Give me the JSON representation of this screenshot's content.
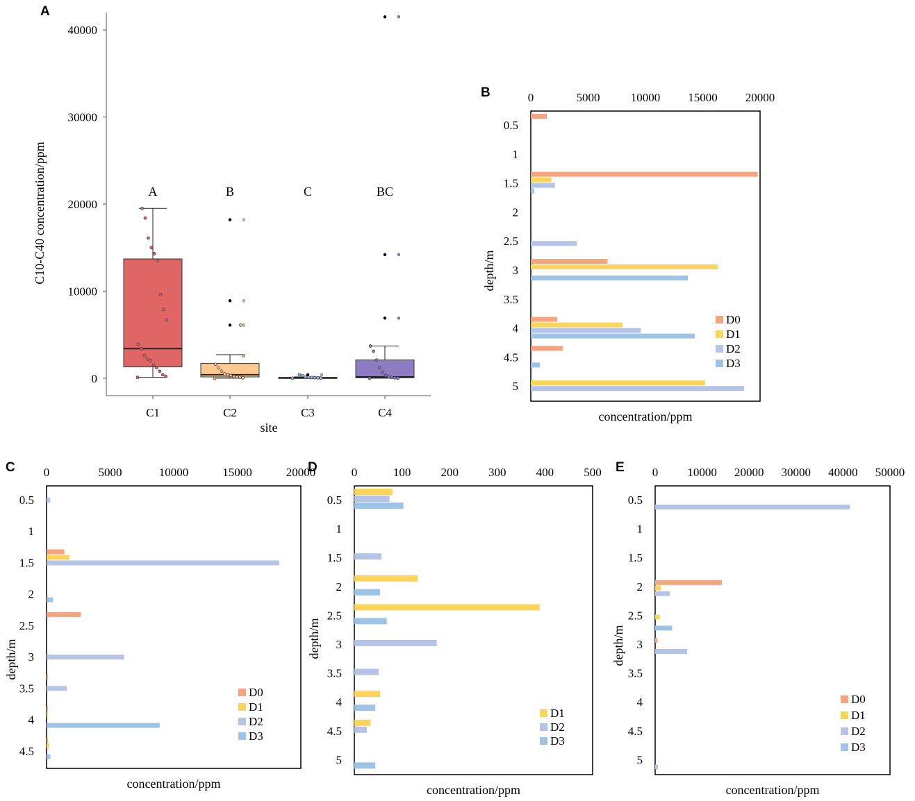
{
  "colors": {
    "D0": "#f4a47e",
    "D1": "#fbd55a",
    "D2": "#b4c3e6",
    "D3": "#9dc3e6"
  },
  "chart_data": [
    {
      "panel": "A",
      "type": "box",
      "xlabel": "site",
      "ylabel": "C10-C40 concentration/ppm",
      "ylim": [
        -2000,
        42000
      ],
      "yticks": [
        0,
        10000,
        20000,
        30000,
        40000
      ],
      "groups": [
        {
          "label": "C1",
          "sig": "A",
          "color": "#e06666",
          "q1": 1300,
          "median": 3400,
          "q3": 13700,
          "whisker_low": 100,
          "whisker_high": 19500,
          "points": [
            100,
            200,
            400,
            800,
            1200,
            1500,
            2000,
            2200,
            2600,
            3400,
            3900,
            6700,
            7900,
            9600,
            13500,
            14300,
            15000,
            16100,
            18400,
            19500
          ],
          "outliers": []
        },
        {
          "label": "C2",
          "sig": "B",
          "color": "#fcc990",
          "q1": 150,
          "median": 400,
          "q3": 1700,
          "whisker_low": 0,
          "whisker_high": 2700,
          "points": [
            0,
            50,
            100,
            150,
            200,
            300,
            400,
            500,
            800,
            1200,
            1600,
            2600,
            6100
          ],
          "outliers": [
            6100,
            8900,
            18200
          ]
        },
        {
          "label": "C3",
          "sig": "C",
          "color": "#9dc3e6",
          "q1": 0,
          "median": 50,
          "q3": 90,
          "whisker_low": 0,
          "whisker_high": 150,
          "points": [
            0,
            20,
            40,
            60,
            80,
            100,
            120,
            300,
            400
          ],
          "outliers": [
            400
          ]
        },
        {
          "label": "C4",
          "sig": "BC",
          "color": "#8e7cc3",
          "q1": 50,
          "median": 150,
          "q3": 2100,
          "whisker_low": 0,
          "whisker_high": 3700,
          "points": [
            0,
            20,
            50,
            100,
            150,
            300,
            700,
            1200,
            2100,
            3100,
            3700
          ],
          "outliers": [
            6900,
            14200,
            41500
          ]
        }
      ]
    },
    {
      "panel": "B",
      "type": "barh",
      "xlabel": "concentration/ppm",
      "ylabel": "depth/m",
      "xlim": [
        0,
        20000
      ],
      "xticks": [
        0,
        5000,
        10000,
        15000,
        20000
      ],
      "depths": [
        "0.5",
        "1",
        "1.5",
        "2",
        "2.5",
        "3",
        "3.5",
        "4",
        "4.5",
        "5"
      ],
      "series": [
        {
          "name": "D0",
          "values": [
            1400,
            0,
            19800,
            0,
            0,
            6700,
            0,
            2300,
            2800,
            0
          ]
        },
        {
          "name": "D1",
          "values": [
            0,
            0,
            1800,
            0,
            0,
            16300,
            0,
            8000,
            0,
            15200
          ]
        },
        {
          "name": "D2",
          "values": [
            0,
            0,
            2100,
            0,
            4000,
            0,
            0,
            9600,
            0,
            18600
          ]
        },
        {
          "name": "D3",
          "values": [
            0,
            0,
            300,
            0,
            0,
            13700,
            0,
            14300,
            800,
            0
          ]
        }
      ],
      "legend": [
        "D0",
        "D1",
        "D2",
        "D3"
      ]
    },
    {
      "panel": "C",
      "type": "barh",
      "xlabel": "concentration/ppm",
      "ylabel": "depth/m",
      "xlim": [
        0,
        20000
      ],
      "xticks": [
        0,
        5000,
        10000,
        15000,
        20000
      ],
      "depths": [
        "0.5",
        "1",
        "1.5",
        "2",
        "2.5",
        "3",
        "3.5",
        "4",
        "4.5"
      ],
      "series": [
        {
          "name": "D0",
          "values": [
            0,
            0,
            1400,
            0,
            2700,
            0,
            100,
            100,
            100
          ]
        },
        {
          "name": "D1",
          "values": [
            0,
            0,
            1800,
            0,
            0,
            0,
            0,
            100,
            200
          ]
        },
        {
          "name": "D2",
          "values": [
            300,
            0,
            18300,
            0,
            0,
            6100,
            1600,
            0,
            0
          ]
        },
        {
          "name": "D3",
          "values": [
            0,
            0,
            0,
            500,
            0,
            0,
            0,
            8900,
            300
          ]
        }
      ],
      "legend": [
        "D0",
        "D1",
        "D2",
        "D3"
      ]
    },
    {
      "panel": "D",
      "type": "barh",
      "xlabel": "concentration/ppm",
      "ylabel": "depth/m",
      "xlim": [
        0,
        500
      ],
      "xticks": [
        0,
        100,
        200,
        300,
        400,
        500
      ],
      "depths": [
        "0.5",
        "1",
        "1.5",
        "2",
        "2.5",
        "3",
        "3.5",
        "4",
        "4.5",
        "5"
      ],
      "series": [
        {
          "name": "D1",
          "values": [
            80,
            0,
            0,
            133,
            389,
            0,
            0,
            54,
            34,
            0
          ]
        },
        {
          "name": "D2",
          "values": [
            74,
            0,
            57,
            0,
            0,
            173,
            51,
            0,
            26,
            0
          ]
        },
        {
          "name": "D3",
          "values": [
            103,
            0,
            0,
            54,
            68,
            0,
            0,
            44,
            0,
            44
          ]
        }
      ],
      "legend": [
        "D1",
        "D2",
        "D3"
      ]
    },
    {
      "panel": "E",
      "type": "barh",
      "xlabel": "concentration/ppm",
      "ylabel": "depth/m",
      "xlim": [
        0,
        50000
      ],
      "xticks": [
        0,
        10000,
        20000,
        30000,
        40000,
        50000
      ],
      "depths": [
        "0.5",
        "1",
        "1.5",
        "2",
        "2.5",
        "3",
        "3.5",
        "4",
        "4.5",
        "5"
      ],
      "series": [
        {
          "name": "D0",
          "values": [
            0,
            0,
            0,
            14200,
            0,
            500,
            0,
            0,
            0,
            0
          ]
        },
        {
          "name": "D1",
          "values": [
            0,
            0,
            0,
            1200,
            1000,
            0,
            0,
            0,
            0,
            0
          ]
        },
        {
          "name": "D2",
          "values": [
            41500,
            0,
            0,
            3100,
            0,
            6800,
            0,
            0,
            0,
            600
          ]
        },
        {
          "name": "D3",
          "values": [
            0,
            0,
            0,
            0,
            3600,
            0,
            0,
            0,
            0,
            0
          ]
        }
      ],
      "legend": [
        "D0",
        "D1",
        "D2",
        "D3"
      ]
    }
  ]
}
